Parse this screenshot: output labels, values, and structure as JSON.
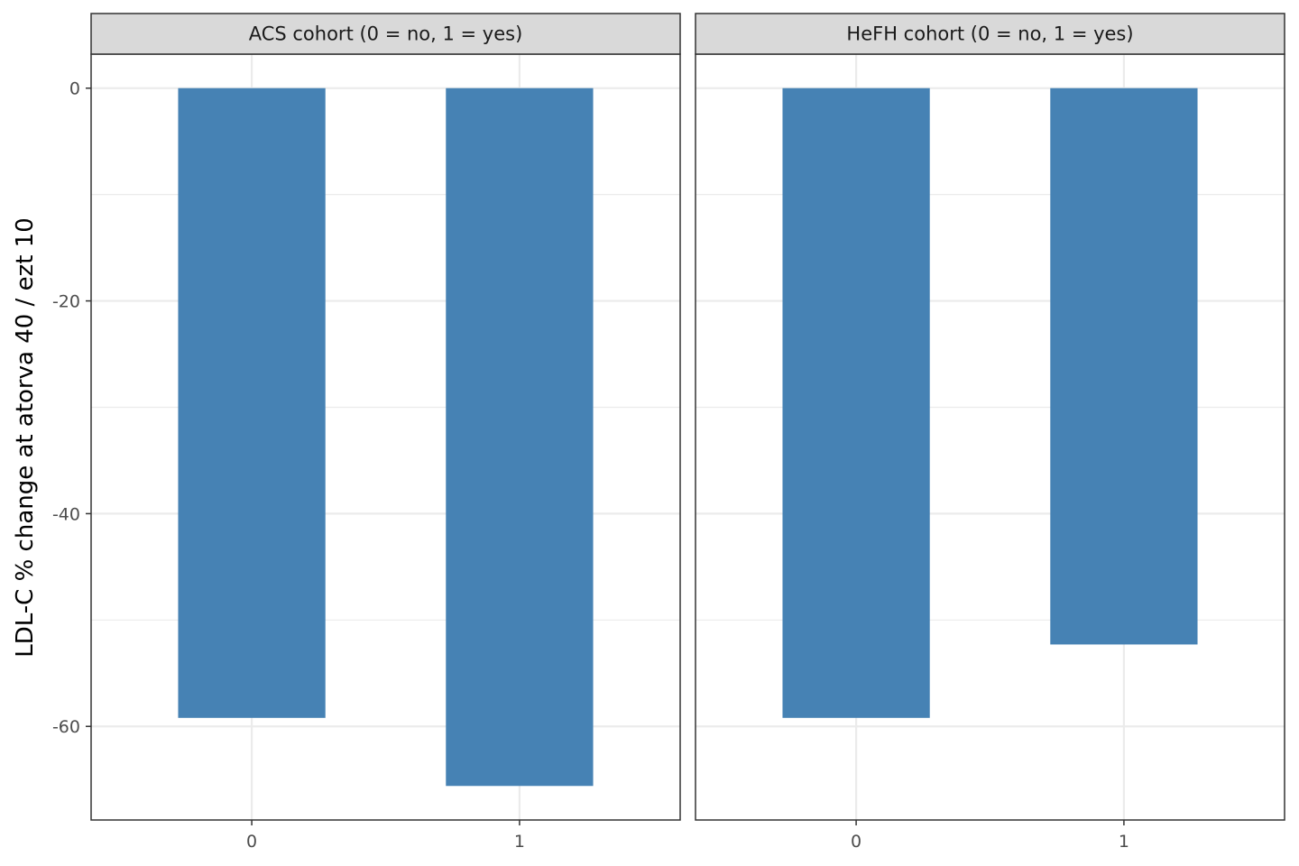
{
  "chart_data": {
    "type": "bar",
    "ylabel": "LDL-C % change at atorva 40 / ezt 10",
    "xlabel": "",
    "ylim": [
      -68.8,
      3.2
    ],
    "y_ticks": [
      0,
      -20,
      -40,
      -60
    ],
    "y_tick_labels": [
      "0",
      "-20",
      "-40",
      "-60"
    ],
    "grid": true,
    "bar_color": "#4682b4",
    "facets": [
      {
        "strip_label": "ACS cohort (0 = no, 1 = yes)",
        "categories": [
          "0",
          "1"
        ],
        "values": [
          -59.2,
          -65.6
        ]
      },
      {
        "strip_label": "HeFH cohort (0 = no, 1 = yes)",
        "categories": [
          "0",
          "1"
        ],
        "values": [
          -59.2,
          -52.3
        ]
      }
    ]
  }
}
